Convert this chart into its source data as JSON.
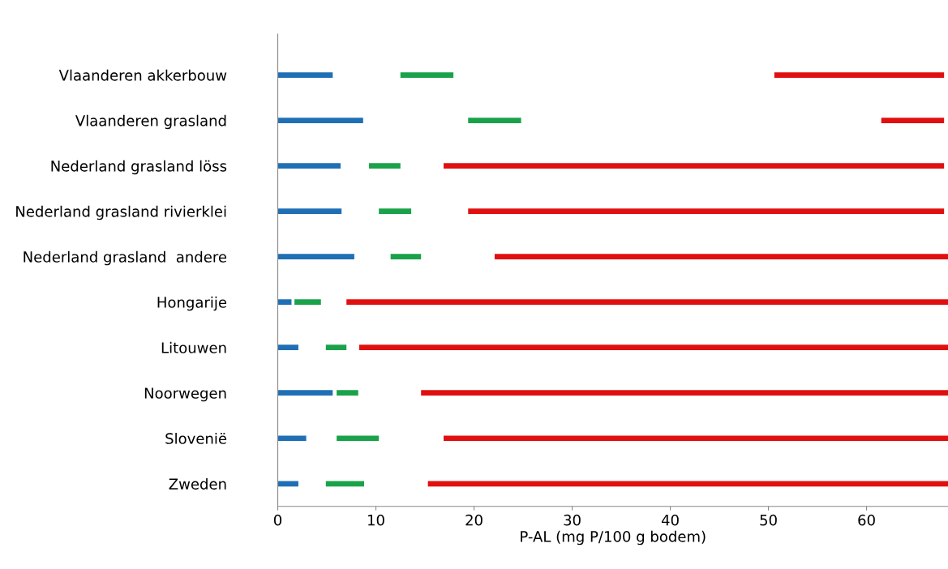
{
  "chart_data": {
    "type": "bar",
    "orientation": "horizontal",
    "xlabel": "P-AL (mg P/100 g bodem)",
    "categories": [
      "Vlaanderen akkerbouw",
      "Vlaanderen grasland",
      "Nederland grasland löss",
      "Nederland grasland rivierklei",
      "Nederland grasland  andere",
      "Hongarije",
      "Litouwen",
      "Noorwegen",
      "Slovenië",
      "Zweden"
    ],
    "series": [
      {
        "color": "#1f6fb5",
        "base": [
          0,
          0,
          0,
          0,
          0,
          0,
          0,
          0,
          0,
          0
        ],
        "values": [
          5.6,
          8.7,
          6.4,
          6.5,
          7.8,
          1.4,
          2.1,
          5.6,
          2.9,
          2.1
        ]
      },
      {
        "color": "#1aa24a",
        "base": [
          12.5,
          19.4,
          9.3,
          10.3,
          11.5,
          1.7,
          4.9,
          6.0,
          6.0,
          4.9
        ],
        "values": [
          5.4,
          5.4,
          3.2,
          3.3,
          3.1,
          2.7,
          2.1,
          2.2,
          4.3,
          3.9
        ]
      },
      {
        "color": "#e01010",
        "base": [
          50.6,
          61.5,
          16.9,
          19.4,
          22.1,
          7.0,
          8.3,
          14.6,
          16.9,
          15.3
        ],
        "values": [
          17.3,
          6.4,
          51.0,
          48.5,
          46.2,
          61.3,
          60.0,
          53.7,
          51.4,
          53.0
        ]
      }
    ],
    "xlim": [
      0,
      68.3
    ],
    "xticks": [
      0,
      10,
      20,
      30,
      40,
      50,
      60
    ],
    "grid": false
  }
}
